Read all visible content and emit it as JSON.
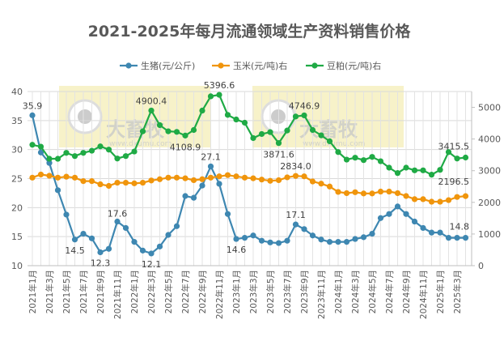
{
  "chart_data": {
    "type": "line",
    "title": "2021-2025年每月流通领域生产资料销售价格",
    "legend_position": "top",
    "grid": true,
    "x": [
      "2021年1月",
      "2021年2月",
      "2021年3月",
      "2021年4月",
      "2021年5月",
      "2021年6月",
      "2021年7月",
      "2021年8月",
      "2021年9月",
      "2021年10月",
      "2021年11月",
      "2021年12月",
      "2022年1月",
      "2022年2月",
      "2022年3月",
      "2022年4月",
      "2022年5月",
      "2022年6月",
      "2022年7月",
      "2022年8月",
      "2022年9月",
      "2022年10月",
      "2022年11月",
      "2022年12月",
      "2023年1月",
      "2023年2月",
      "2023年3月",
      "2023年4月",
      "2023年5月",
      "2023年6月",
      "2023年7月",
      "2023年8月",
      "2023年9月",
      "2023年10月",
      "2023年11月",
      "2023年12月",
      "2024年1月",
      "2024年2月",
      "2024年3月",
      "2024年4月",
      "2024年5月",
      "2024年6月",
      "2024年7月",
      "2024年8月",
      "2024年9月",
      "2024年10月",
      "2024年11月",
      "2024年12月",
      "2025年1月",
      "2025年2月",
      "2025年3月",
      "2025年4月"
    ],
    "x_tick_labels": [
      "2021年1月",
      "2021年3月",
      "2021年5月",
      "2021年7月",
      "2021年9月",
      "2021年11月",
      "2022年1月",
      "2022年3月",
      "2022年5月",
      "2022年7月",
      "2022年9月",
      "2022年11月",
      "2023年1月",
      "2023年3月",
      "2023年5月",
      "2023年7月",
      "2023年9月",
      "2023年11月",
      "2024年1月",
      "2024年3月",
      "2024年5月",
      "2024年7月",
      "2024年9月",
      "2024年11月",
      "2025年1月",
      "2025年3月"
    ],
    "y_left": {
      "range": [
        10,
        40
      ],
      "ticks": [
        10,
        15,
        20,
        25,
        30,
        35,
        40
      ]
    },
    "y_right": {
      "range": [
        0,
        5500
      ],
      "ticks": [
        0,
        1000,
        2000,
        3000,
        4000,
        5000
      ]
    },
    "series": [
      {
        "name": "生猪(元/公斤)",
        "axis": "left",
        "color": "#3e87b1",
        "values": [
          35.9,
          29.5,
          27.7,
          23.0,
          18.8,
          14.5,
          15.5,
          14.7,
          12.3,
          12.9,
          17.6,
          16.5,
          14.1,
          12.6,
          12.1,
          13.3,
          15.3,
          16.8,
          22.0,
          21.7,
          23.8,
          27.1,
          24.1,
          18.9,
          14.6,
          14.8,
          15.2,
          14.3,
          14.0,
          13.9,
          14.3,
          17.1,
          16.3,
          15.2,
          14.5,
          14.1,
          14.1,
          14.1,
          14.6,
          14.9,
          15.5,
          18.2,
          18.9,
          20.2,
          18.9,
          17.6,
          16.5,
          15.7,
          15.7,
          14.8,
          14.8,
          14.8
        ],
        "labels": {
          "0": "35.9",
          "5": "14.5",
          "8": "12.3",
          "10": "17.6",
          "14": "12.1",
          "21": "27.1",
          "24": "14.6",
          "31": "17.1",
          "51": "14.8"
        }
      },
      {
        "name": "玉米(元/吨)右",
        "axis": "right",
        "color": "#f0950c",
        "values": [
          2780,
          2880,
          2840,
          2780,
          2810,
          2780,
          2670,
          2670,
          2570,
          2520,
          2620,
          2620,
          2600,
          2620,
          2690,
          2730,
          2780,
          2780,
          2760,
          2700,
          2730,
          2780,
          2820,
          2860,
          2820,
          2780,
          2760,
          2720,
          2680,
          2700,
          2790,
          2834.0,
          2820,
          2660,
          2590,
          2500,
          2330,
          2290,
          2320,
          2280,
          2280,
          2340,
          2340,
          2290,
          2200,
          2100,
          2100,
          2020,
          2020,
          2070,
          2170,
          2196.5
        ],
        "labels": {
          "31": "2834.0",
          "51": "2196.5"
        }
      },
      {
        "name": "豆粕(元/吨)右",
        "axis": "right",
        "color": "#1faa45",
        "values": [
          3818,
          3759,
          3376,
          3376,
          3563,
          3461,
          3563,
          3631,
          3767,
          3665,
          3384,
          3461,
          3605,
          4243,
          4900.4,
          4439,
          4243,
          4226,
          4108.9,
          4285,
          4898,
          5349,
          5396.6,
          4762,
          4617,
          4515,
          4030,
          4158,
          4218,
          3871.6,
          4269,
          4711,
          4746.9,
          4285,
          4116,
          3929,
          3588,
          3350,
          3410,
          3333,
          3435,
          3299,
          3095,
          2925,
          3095,
          3010,
          3010,
          2874,
          3027,
          3588,
          3384,
          3415.5
        ],
        "labels": {
          "14": "4900.4",
          "18": "4108.9",
          "22": "5396.6",
          "29": "3871.6",
          "32": "4746.9",
          "51": "3415.5"
        }
      }
    ]
  },
  "watermark": {
    "brand": "大畜牧",
    "url": "www.dxumu.com"
  }
}
